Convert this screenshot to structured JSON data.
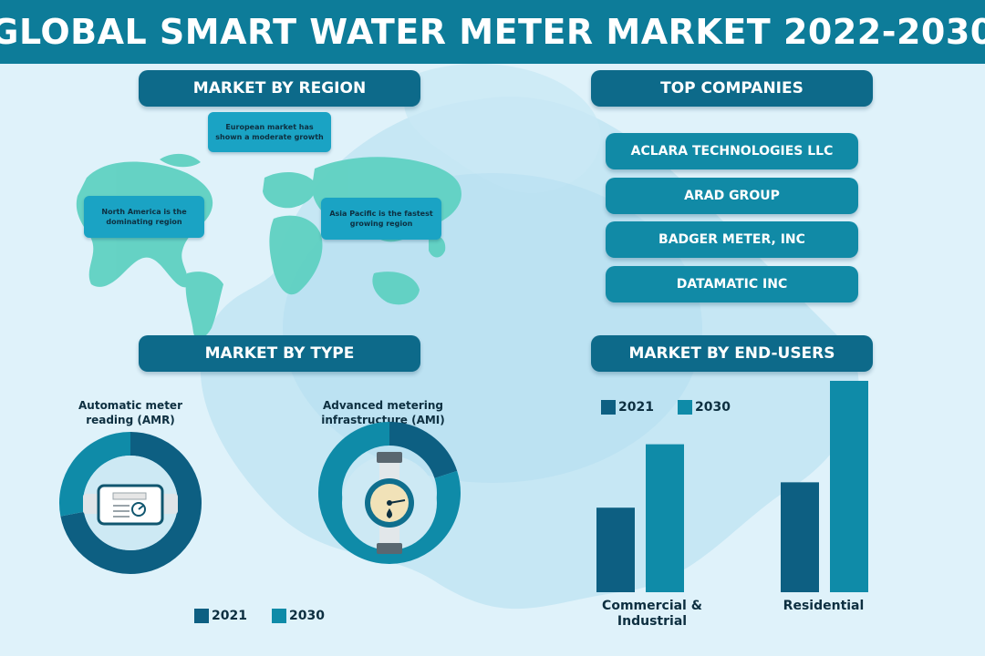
{
  "title": "GLOBAL SMART WATER METER MARKET 2022-2030",
  "region": {
    "heading": "MARKET BY REGION",
    "notes": {
      "europe": "European market has shown a moderate growth",
      "north_america": "North America is the dominating region",
      "asia_pacific": "Asia Pacific is the fastest growing region"
    }
  },
  "companies": {
    "heading": "TOP COMPANIES",
    "items": [
      "ACLARA TECHNOLOGIES LLC",
      "ARAD GROUP",
      "BADGER METER, INC",
      "DATAMATIC INC"
    ]
  },
  "type": {
    "heading": "MARKET BY TYPE",
    "amr_label": "Automatic meter reading (AMR)",
    "ami_label": "Advanced metering infrastructure (AMI)",
    "legend": [
      "2021",
      "2030"
    ]
  },
  "end_users": {
    "heading": "MARKET BY END-USERS",
    "legend": [
      "2021",
      "2030"
    ],
    "categories": [
      "Commercial & Industrial",
      "Residential"
    ]
  },
  "colors": {
    "header": "#0d7c99",
    "pill": "#0d6a8a",
    "company": "#118aa6",
    "series_2021": "#0d5f82",
    "series_2030": "#0f8ba8",
    "map_land": "#5fd1c2",
    "background": "#dff2fa"
  },
  "chart_data": [
    {
      "type": "pie",
      "title": "Automatic meter reading (AMR)",
      "labels": [
        "2021",
        "2030"
      ],
      "values": [
        72,
        28
      ]
    },
    {
      "type": "pie",
      "title": "Advanced metering infrastructure (AMI)",
      "labels": [
        "2021",
        "2030"
      ],
      "values": [
        20,
        80
      ]
    },
    {
      "type": "bar",
      "title": "MARKET BY END-USERS",
      "categories": [
        "Commercial & Industrial",
        "Residential"
      ],
      "series": [
        {
          "name": "2021",
          "values": [
            40,
            52
          ]
        },
        {
          "name": "2030",
          "values": [
            70,
            100
          ]
        }
      ],
      "ylim": [
        0,
        100
      ],
      "grid": false,
      "legend": "top-left"
    }
  ]
}
